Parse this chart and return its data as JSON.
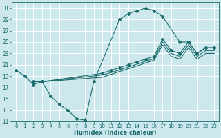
{
  "xlabel": "Humidex (Indice chaleur)",
  "bg_color": "#cce8ec",
  "grid_color": "#ffffff",
  "line_color": "#1a6b6b",
  "xlim": [
    -0.5,
    23.5
  ],
  "ylim": [
    11,
    32
  ],
  "xticks": [
    0,
    1,
    2,
    3,
    4,
    5,
    6,
    7,
    8,
    9,
    10,
    11,
    12,
    13,
    14,
    15,
    16,
    17,
    18,
    19,
    20,
    21,
    22,
    23
  ],
  "yticks": [
    11,
    13,
    15,
    17,
    19,
    21,
    23,
    25,
    27,
    29,
    31
  ],
  "series1_x": [
    0,
    1,
    2,
    3,
    4,
    5,
    6,
    7,
    8,
    9,
    12,
    13,
    14,
    15,
    16,
    17,
    19,
    20,
    21,
    22,
    23
  ],
  "series1_y": [
    20,
    19,
    17.5,
    18,
    15.5,
    14,
    13,
    11.5,
    11.2,
    18,
    29,
    30,
    30.5,
    31,
    30.5,
    29.5,
    25,
    25,
    23,
    24,
    24
  ],
  "series2_x": [
    2,
    3,
    10,
    11,
    12,
    13,
    14,
    15,
    16,
    17,
    18,
    19,
    20,
    21,
    22,
    23
  ],
  "series2_y": [
    18,
    18,
    19.5,
    20.0,
    20.5,
    21.0,
    21.5,
    22.0,
    22.5,
    25.5,
    23.5,
    23.0,
    25.0,
    23.0,
    24.0,
    24.0
  ],
  "series3_x": [
    2,
    3,
    10,
    11,
    12,
    13,
    14,
    15,
    16,
    17,
    18,
    19,
    20,
    21,
    22,
    23
  ],
  "series3_y": [
    18,
    18,
    19.2,
    19.6,
    20.1,
    20.6,
    21.1,
    21.6,
    22.1,
    25.0,
    23.0,
    22.5,
    24.5,
    22.5,
    23.5,
    23.5
  ],
  "series4_x": [
    2,
    3,
    10,
    11,
    12,
    13,
    14,
    15,
    16,
    17,
    18,
    19,
    20,
    21,
    22,
    23
  ],
  "series4_y": [
    18,
    18,
    18.8,
    19.3,
    19.8,
    20.3,
    20.8,
    21.3,
    21.8,
    24.5,
    22.5,
    22.0,
    24.0,
    22.0,
    23.0,
    23.0
  ]
}
